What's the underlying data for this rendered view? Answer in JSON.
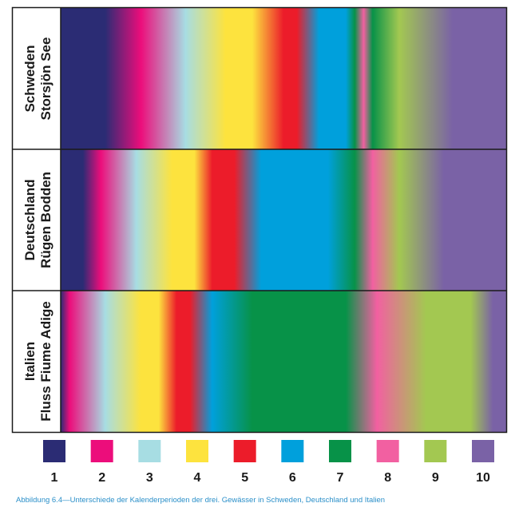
{
  "chart_data": {
    "type": "heatmap",
    "title": "",
    "xlabel": "",
    "ylabel": "",
    "classes": [
      {
        "label": "1",
        "color": "#2b2c74"
      },
      {
        "label": "2",
        "color": "#ec0d7b"
      },
      {
        "label": "3",
        "color": "#a7dde3"
      },
      {
        "label": "4",
        "color": "#fde33e"
      },
      {
        "label": "5",
        "color": "#ec1c2a"
      },
      {
        "label": "6",
        "color": "#00a0dc"
      },
      {
        "label": "7",
        "color": "#079248"
      },
      {
        "label": "8",
        "color": "#f260a1"
      },
      {
        "label": "9",
        "color": "#a3c851"
      },
      {
        "label": "10",
        "color": "#7a62a6"
      }
    ],
    "rows": [
      {
        "label_line1": "Schweden",
        "label_line2": "Storsjön See",
        "stops": [
          {
            "pos": 0.0,
            "class": 1
          },
          {
            "pos": 0.1,
            "class": 1
          },
          {
            "pos": 0.18,
            "class": 2
          },
          {
            "pos": 0.28,
            "class": 3
          },
          {
            "pos": 0.37,
            "class": 4
          },
          {
            "pos": 0.43,
            "class": 4
          },
          {
            "pos": 0.5,
            "class": 5
          },
          {
            "pos": 0.53,
            "class": 5
          },
          {
            "pos": 0.58,
            "class": 6
          },
          {
            "pos": 0.64,
            "class": 6
          },
          {
            "pos": 0.66,
            "class": 7
          },
          {
            "pos": 0.68,
            "class": 8
          },
          {
            "pos": 0.7,
            "class": 7
          },
          {
            "pos": 0.76,
            "class": 9
          },
          {
            "pos": 0.88,
            "class": 10
          },
          {
            "pos": 1.0,
            "class": 10
          }
        ]
      },
      {
        "label_line1": "Deutschland",
        "label_line2": "Rügen Bodden",
        "stops": [
          {
            "pos": 0.0,
            "class": 1
          },
          {
            "pos": 0.05,
            "class": 1
          },
          {
            "pos": 0.09,
            "class": 2
          },
          {
            "pos": 0.17,
            "class": 3
          },
          {
            "pos": 0.25,
            "class": 4
          },
          {
            "pos": 0.3,
            "class": 4
          },
          {
            "pos": 0.34,
            "class": 5
          },
          {
            "pos": 0.39,
            "class": 5
          },
          {
            "pos": 0.45,
            "class": 6
          },
          {
            "pos": 0.6,
            "class": 6
          },
          {
            "pos": 0.66,
            "class": 7
          },
          {
            "pos": 0.7,
            "class": 8
          },
          {
            "pos": 0.76,
            "class": 9
          },
          {
            "pos": 0.86,
            "class": 10
          },
          {
            "pos": 1.0,
            "class": 10
          }
        ]
      },
      {
        "label_line1": "Italien",
        "label_line2": "Fluss Fiume Adige",
        "stops": [
          {
            "pos": 0.0,
            "class": 1
          },
          {
            "pos": 0.02,
            "class": 2
          },
          {
            "pos": 0.1,
            "class": 3
          },
          {
            "pos": 0.18,
            "class": 4
          },
          {
            "pos": 0.22,
            "class": 4
          },
          {
            "pos": 0.26,
            "class": 5
          },
          {
            "pos": 0.29,
            "class": 5
          },
          {
            "pos": 0.34,
            "class": 6
          },
          {
            "pos": 0.43,
            "class": 7
          },
          {
            "pos": 0.64,
            "class": 7
          },
          {
            "pos": 0.71,
            "class": 8
          },
          {
            "pos": 0.82,
            "class": 9
          },
          {
            "pos": 0.92,
            "class": 9
          },
          {
            "pos": 0.97,
            "class": 10
          },
          {
            "pos": 1.0,
            "class": 10
          }
        ]
      }
    ]
  },
  "caption": "Abbildung 6.4—Unterschiede der Kalenderperioden der drei. Gewässer in Schweden, Deutschland und Italien"
}
